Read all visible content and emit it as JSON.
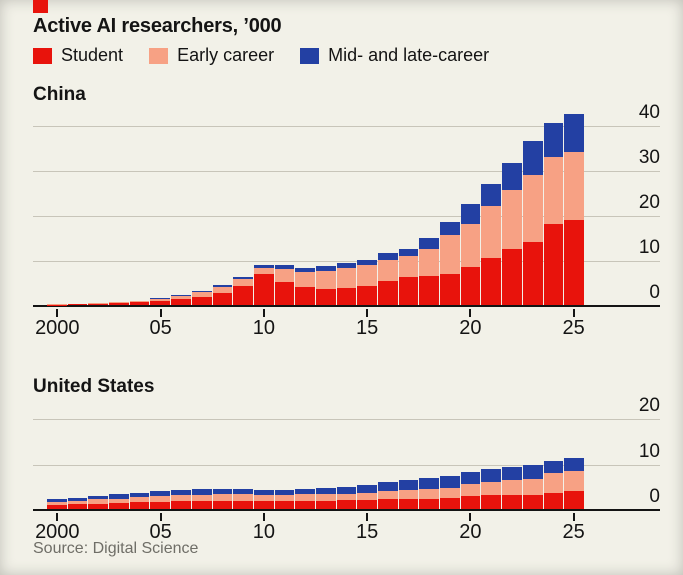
{
  "page": {
    "background": "#f2f1e8",
    "accent_color": "#e8130c"
  },
  "title": "Active AI researchers, ’000",
  "legend": [
    {
      "key": "student",
      "label": "Student",
      "color": "#e8130c"
    },
    {
      "key": "early_career",
      "label": "Early career",
      "color": "#f7a184"
    },
    {
      "key": "mid_late_career",
      "label": "Mid- and late-career",
      "color": "#2340a3"
    }
  ],
  "source": "Source: Digital Science",
  "chart_data": [
    {
      "type": "bar",
      "stacked": true,
      "title": "China",
      "ylabel": "",
      "xlabel": "",
      "grid": true,
      "legend_position": "top",
      "ylim": [
        0,
        40
      ],
      "y_ticks": [
        0,
        10,
        20,
        30,
        40
      ],
      "x": [
        2000,
        2001,
        2002,
        2003,
        2004,
        2005,
        2006,
        2007,
        2008,
        2009,
        2010,
        2011,
        2012,
        2013,
        2014,
        2015,
        2016,
        2017,
        2018,
        2019,
        2020,
        2021,
        2022,
        2023,
        2024,
        2025
      ],
      "x_tick_years": [
        2000,
        2005,
        2010,
        2015,
        2020,
        2025
      ],
      "x_tick_labels": [
        "2000",
        "05",
        "10",
        "15",
        "20",
        "25"
      ],
      "series": [
        {
          "key": "student",
          "name": "Student",
          "values": [
            0.1,
            0.2,
            0.3,
            0.4,
            0.6,
            0.9,
            1.3,
            1.8,
            2.6,
            4.3,
            6.8,
            5.2,
            4.1,
            3.5,
            3.8,
            4.3,
            5.3,
            6.2,
            6.5,
            7.0,
            8.5,
            10.5,
            12.5,
            14.0,
            18.0,
            19.0
          ]
        },
        {
          "key": "early_career",
          "name": "Early career",
          "values": [
            0.1,
            0.1,
            0.1,
            0.2,
            0.3,
            0.4,
            0.7,
            1.0,
            1.3,
            1.5,
            1.5,
            2.8,
            3.3,
            4.1,
            4.4,
            4.6,
            4.7,
            4.6,
            6.0,
            8.6,
            9.5,
            11.5,
            13.0,
            15.0,
            15.0,
            15.0
          ]
        },
        {
          "key": "mid_late_career",
          "name": "Mid- and late-career",
          "values": [
            0.0,
            0.0,
            0.1,
            0.1,
            0.1,
            0.2,
            0.3,
            0.4,
            0.5,
            0.5,
            0.7,
            0.8,
            0.8,
            1.0,
            1.1,
            1.2,
            1.5,
            1.6,
            2.5,
            2.9,
            4.5,
            5.0,
            6.0,
            7.5,
            7.5,
            8.5
          ]
        }
      ]
    },
    {
      "type": "bar",
      "stacked": true,
      "title": "United States",
      "ylabel": "",
      "xlabel": "",
      "grid": true,
      "legend_position": "top",
      "ylim": [
        0,
        20
      ],
      "y_ticks": [
        0,
        10,
        20
      ],
      "x": [
        2000,
        2001,
        2002,
        2003,
        2004,
        2005,
        2006,
        2007,
        2008,
        2009,
        2010,
        2011,
        2012,
        2013,
        2014,
        2015,
        2016,
        2017,
        2018,
        2019,
        2020,
        2021,
        2022,
        2023,
        2024,
        2025
      ],
      "x_tick_years": [
        2000,
        2005,
        2010,
        2015,
        2020,
        2025
      ],
      "x_tick_labels": [
        "2000",
        "05",
        "10",
        "15",
        "20",
        "25"
      ],
      "series": [
        {
          "key": "student",
          "name": "Student",
          "values": [
            0.9,
            1.0,
            1.2,
            1.3,
            1.5,
            1.6,
            1.7,
            1.7,
            1.8,
            1.8,
            1.7,
            1.7,
            1.8,
            1.8,
            1.9,
            2.0,
            2.1,
            2.2,
            2.3,
            2.4,
            2.8,
            3.0,
            3.1,
            3.0,
            3.5,
            4.0
          ]
        },
        {
          "key": "early_career",
          "name": "Early career",
          "values": [
            0.7,
            0.8,
            0.9,
            1.0,
            1.1,
            1.2,
            1.3,
            1.4,
            1.4,
            1.4,
            1.3,
            1.3,
            1.4,
            1.4,
            1.5,
            1.6,
            1.8,
            2.0,
            2.2,
            2.3,
            2.7,
            3.0,
            3.2,
            3.7,
            4.4,
            4.4
          ]
        },
        {
          "key": "mid_late_career",
          "name": "Mid- and late-career",
          "values": [
            0.5,
            0.6,
            0.7,
            0.9,
            1.0,
            1.1,
            1.2,
            1.2,
            1.2,
            1.2,
            1.2,
            1.2,
            1.3,
            1.4,
            1.5,
            1.6,
            2.0,
            2.2,
            2.4,
            2.5,
            2.6,
            2.8,
            3.0,
            3.0,
            2.7,
            2.9
          ]
        }
      ]
    }
  ]
}
